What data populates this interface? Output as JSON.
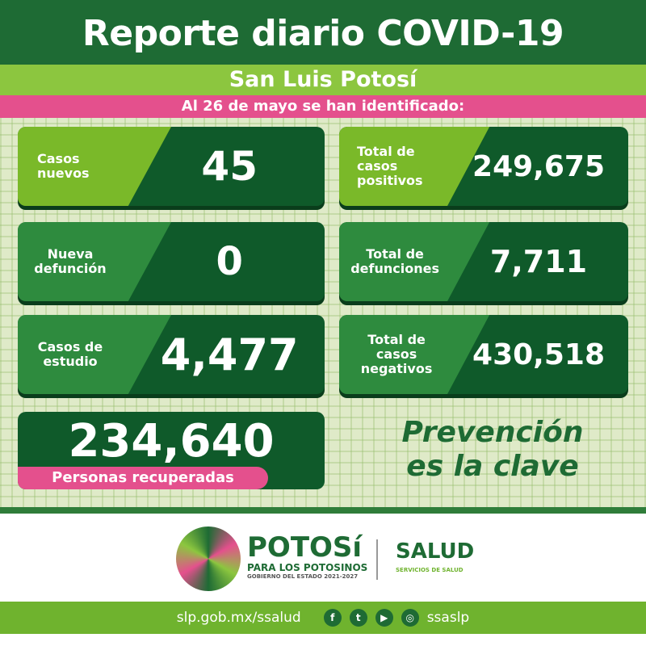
{
  "header": {
    "title": "Reporte diario COVID-19",
    "region": "San Luis Potosí",
    "date_line": "Al 26 de mayo se han identificado:"
  },
  "cards": [
    {
      "label": "Casos nuevos",
      "value": "45"
    },
    {
      "label": "Total de casos positivos",
      "value": "249,675"
    },
    {
      "label": "Nueva defunción",
      "value": "0"
    },
    {
      "label": "Total de defunciones",
      "value": "7,711"
    },
    {
      "label": "Casos de estudio",
      "value": "4,477"
    },
    {
      "label": "Total de casos negativos",
      "value": "430,518"
    }
  ],
  "recovered": {
    "value": "234,640",
    "label": "Personas recuperadas"
  },
  "slogan": {
    "line1": "Prevención",
    "line2": "es la clave"
  },
  "logos": {
    "potosi": "POTOSí",
    "potosi_sub": "PARA LOS POTOSINOS",
    "potosi_gov": "GOBIERNO DEL ESTADO 2021-2027",
    "salud": "SALUD",
    "salud_sub": "SERVICIOS DE SALUD"
  },
  "footer": {
    "url": "slp.gob.mx/ssalud",
    "handle": "ssaslp",
    "icons": [
      "facebook-icon",
      "twitter-icon",
      "youtube-icon",
      "instagram-icon"
    ]
  },
  "colors": {
    "dark_green": "#0f5a2a",
    "light_green": "#8cc63f",
    "pink": "#e4508d"
  }
}
